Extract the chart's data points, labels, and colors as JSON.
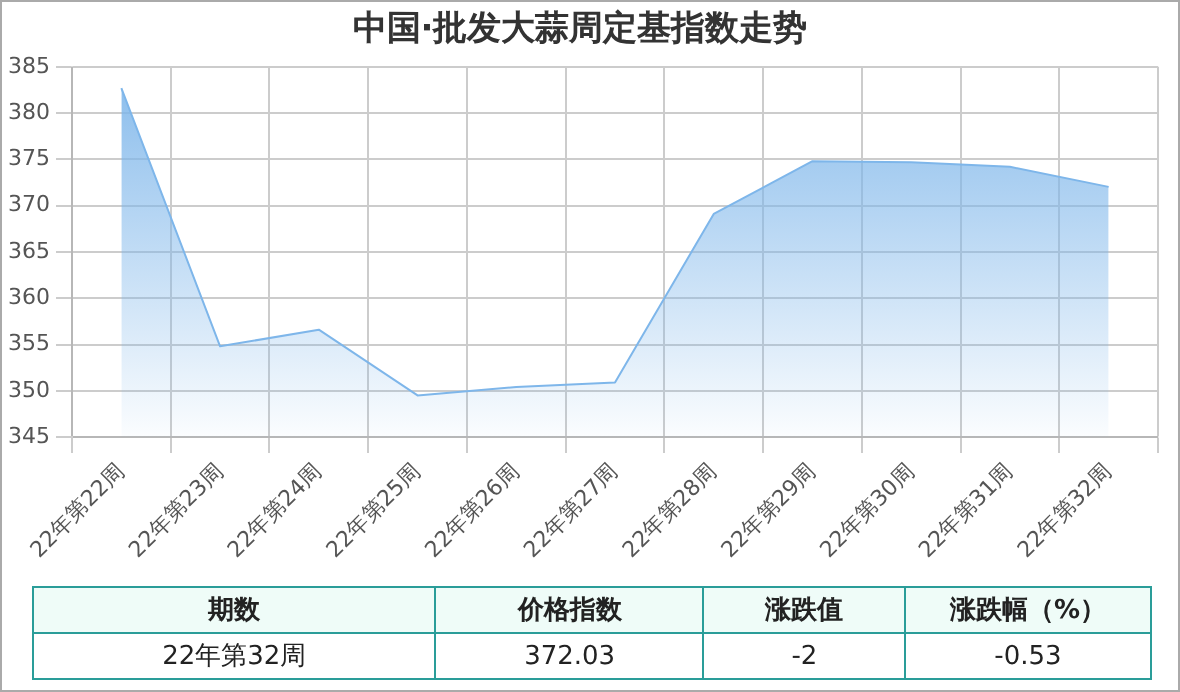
{
  "chart_data": {
    "type": "area",
    "title": "中国·批发大蒜周定基指数走势",
    "categories": [
      "22年第22周",
      "22年第23周",
      "22年第24周",
      "22年第25周",
      "22年第26周",
      "22年第27周",
      "22年第28周",
      "22年第29周",
      "22年第30周",
      "22年第31周",
      "22年第32周"
    ],
    "series": [
      {
        "color": "#7eb6ea",
        "values": [
          382.7,
          354.8,
          356.6,
          349.5,
          350.4,
          350.9,
          369.1,
          374.8,
          374.7,
          374.2,
          372.03
        ]
      }
    ],
    "ylim": [
      345,
      385
    ],
    "yticks": [
      345,
      350,
      355,
      360,
      365,
      370,
      375,
      380,
      385
    ],
    "grid": true,
    "legend": false,
    "annotations": [
      "期数",
      "价格指数",
      "涨跌值",
      "涨跌幅（%）",
      "22年第32周",
      "372.03",
      "-2",
      "-0.53"
    ]
  }
}
